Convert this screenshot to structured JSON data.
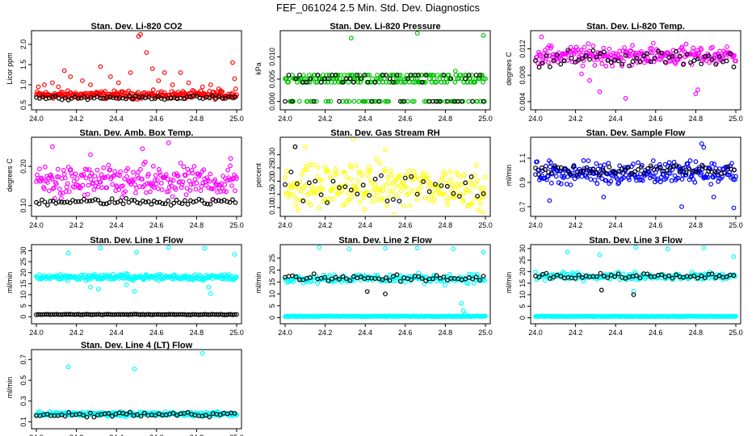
{
  "figure_title": "FEF_061024  2.5 Min. Std. Dev. Diagnostics",
  "chart_data": [
    {
      "type": "scatter",
      "title": "Stan. Dev. Li-820 CO2",
      "ylabel": "Licor ppm",
      "xlim": [
        24.0,
        25.0
      ],
      "ylim": [
        0.5,
        2.3
      ],
      "xticks": [
        "24.0",
        "24.2",
        "24.4",
        "24.6",
        "24.8",
        "25.0"
      ],
      "yticks": [
        {
          "v": 0.5,
          "label": "0.5"
        },
        {
          "v": 1.0,
          "label": "1.0"
        },
        {
          "v": 1.5,
          "label": "1.5"
        },
        {
          "v": 2.0,
          "label": "2.0"
        }
      ],
      "series": [
        {
          "name": "raw",
          "color": "#ff0000",
          "base": 0.75,
          "spread": 0.07,
          "extras": [
            [
              24.01,
              0.95
            ],
            [
              24.04,
              1.0
            ],
            [
              24.08,
              1.05
            ],
            [
              24.11,
              0.95
            ],
            [
              24.14,
              1.35
            ],
            [
              24.17,
              1.2
            ],
            [
              24.23,
              1.1
            ],
            [
              24.27,
              1.0
            ],
            [
              24.32,
              1.45
            ],
            [
              24.37,
              1.2
            ],
            [
              24.41,
              1.05
            ],
            [
              24.47,
              1.3
            ],
            [
              24.51,
              2.2
            ],
            [
              24.52,
              2.25
            ],
            [
              24.55,
              1.8
            ],
            [
              24.58,
              1.4
            ],
            [
              24.61,
              1.1
            ],
            [
              24.64,
              1.3
            ],
            [
              24.68,
              1.0
            ],
            [
              24.72,
              1.3
            ],
            [
              24.76,
              1.05
            ],
            [
              24.83,
              0.95
            ],
            [
              24.87,
              1.0
            ],
            [
              24.91,
              0.9
            ],
            [
              24.98,
              1.55
            ],
            [
              24.99,
              1.15
            ],
            [
              24.995,
              0.9
            ]
          ]
        },
        {
          "name": "averaged",
          "color": "#000000",
          "base": 0.68,
          "spread": 0.03,
          "step": 0.016,
          "extras": []
        }
      ]
    },
    {
      "type": "scatter",
      "title": "Stan. Dev. Li-820 Pressure",
      "ylabel": "kPa",
      "xlim": [
        24.0,
        25.0
      ],
      "ylim": [
        -0.0008,
        0.0155
      ],
      "xticks": [
        "24.0",
        "24.2",
        "24.4",
        "24.6",
        "24.8",
        "25.0"
      ],
      "yticks": [
        {
          "v": 0.0,
          "label": "0.000"
        },
        {
          "v": 0.005,
          "label": "0.005"
        },
        {
          "v": 0.01,
          "label": "0.010"
        }
      ],
      "series": [
        {
          "name": "raw",
          "color": "#00c000",
          "levels": [
            0.0,
            0.0043,
            0.0051,
            0.0059
          ],
          "extras": [
            [
              24.33,
              0.0142
            ],
            [
              24.66,
              0.0153
            ],
            [
              24.99,
              0.0148
            ],
            [
              24.85,
              0.0068
            ]
          ]
        },
        {
          "name": "averaged",
          "color": "#000000",
          "levels": [
            0.0,
            0.0043,
            0.0051,
            0.0059
          ],
          "step": 0.018,
          "extras": []
        }
      ]
    },
    {
      "type": "scatter",
      "title": "Stan. Dev. Li-820 Temp.",
      "ylabel": "degrees C",
      "xlim": [
        24.0,
        25.0
      ],
      "ylim": [
        0.0035,
        0.0145
      ],
      "xticks": [
        "24.0",
        "24.2",
        "24.4",
        "24.6",
        "24.8",
        "25.0"
      ],
      "yticks": [
        {
          "v": 0.004,
          "label": "0.004"
        },
        {
          "v": 0.008,
          "label": "0.008"
        },
        {
          "v": 0.012,
          "label": "0.012"
        }
      ],
      "series": [
        {
          "name": "raw",
          "color": "#ff00ff",
          "base": 0.011,
          "spread": 0.0011,
          "extras": [
            [
              24.03,
              0.0138
            ],
            [
              24.27,
              0.0072
            ],
            [
              24.32,
              0.0055
            ],
            [
              24.45,
              0.0045
            ],
            [
              24.8,
              0.0052
            ],
            [
              24.81,
              0.0058
            ],
            [
              24.23,
              0.0082
            ]
          ]
        },
        {
          "name": "averaged",
          "color": "#000000",
          "base": 0.0105,
          "spread": 0.0009,
          "step": 0.018,
          "extras": []
        }
      ]
    },
    {
      "type": "scatter",
      "title": "Stan. Dev. Amb. Box Temp.",
      "ylabel": "degrees C",
      "xlim": [
        24.0,
        25.0
      ],
      "ylim": [
        0.085,
        0.27
      ],
      "xticks": [
        "24.0",
        "24.2",
        "24.4",
        "24.6",
        "24.8",
        "25.0"
      ],
      "yticks": [
        {
          "v": 0.1,
          "label": "0.10"
        },
        {
          "v": 0.2,
          "label": "0.20"
        }
      ],
      "series": [
        {
          "name": "raw",
          "color": "#ff00ff",
          "base": 0.16,
          "spread": 0.03,
          "extras": [
            [
              24.66,
              0.26
            ],
            [
              24.08,
              0.25
            ],
            [
              24.53,
              0.245
            ],
            [
              24.27,
              0.23
            ],
            [
              24.97,
              0.22
            ]
          ]
        },
        {
          "name": "averaged",
          "color": "#000000",
          "base": 0.11,
          "spread": 0.006,
          "step": 0.014,
          "extras": []
        }
      ]
    },
    {
      "type": "scatter",
      "title": "Stan. Dev. Gas Stream RH",
      "ylabel": "percent",
      "xlim": [
        24.0,
        25.0
      ],
      "ylim": [
        0.085,
        0.36
      ],
      "xticks": [
        "24.0",
        "24.2",
        "24.4",
        "24.6",
        "24.8",
        "25.0"
      ],
      "yticks": [
        {
          "v": 0.1,
          "label": "0.10"
        },
        {
          "v": 0.15,
          "label": "0.15"
        },
        {
          "v": 0.2,
          "label": "0.20"
        },
        {
          "v": 0.25,
          "label": "0.25"
        },
        {
          "v": 0.3,
          "label": "0.30"
        }
      ],
      "series": [
        {
          "name": "raw",
          "color": "#ffff00",
          "base": 0.18,
          "spread": 0.06,
          "extras": [
            [
              24.34,
              0.36
            ],
            [
              24.1,
              0.33
            ],
            [
              24.5,
              0.32
            ]
          ]
        },
        {
          "name": "averaged",
          "color": "#000000",
          "base": 0.17,
          "spread": 0.04,
          "step": 0.03,
          "extras": [
            [
              24.05,
              0.33
            ]
          ]
        }
      ]
    },
    {
      "type": "scatter",
      "title": "Stan. Dev. Sample Flow",
      "ylabel": "ml/min",
      "xlim": [
        24.0,
        25.0
      ],
      "ylim": [
        0.66,
        1.26
      ],
      "xticks": [
        "24.0",
        "24.2",
        "24.4",
        "24.6",
        "24.8",
        "25.0"
      ],
      "yticks": [
        {
          "v": 0.7,
          "label": "0.7"
        },
        {
          "v": 0.9,
          "label": "0.9"
        },
        {
          "v": 1.1,
          "label": "1.1"
        }
      ],
      "series": [
        {
          "name": "raw",
          "color": "#0000ff",
          "base": 0.98,
          "spread": 0.07,
          "extras": [
            [
              24.83,
              1.22
            ],
            [
              24.84,
              1.19
            ],
            [
              24.07,
              0.75
            ],
            [
              24.73,
              0.7
            ],
            [
              24.99,
              0.69
            ],
            [
              24.34,
              0.78
            ],
            [
              24.89,
              0.78
            ]
          ]
        },
        {
          "name": "averaged",
          "color": "#000000",
          "base": 1.0,
          "spread": 0.03,
          "step": 0.016,
          "extras": []
        }
      ]
    },
    {
      "type": "scatter",
      "title": "Stan. Dev. Line 1 Flow",
      "ylabel": "ml/min",
      "xlim": [
        24.0,
        25.0
      ],
      "ylim": [
        -1,
        32
      ],
      "xticks": [
        "24.0",
        "24.2",
        "24.4",
        "24.6",
        "24.8",
        "25.0"
      ],
      "yticks": [
        {
          "v": 0,
          "label": "0"
        },
        {
          "v": 5,
          "label": "5"
        },
        {
          "v": 10,
          "label": "10"
        },
        {
          "v": 15,
          "label": "15"
        },
        {
          "v": 20,
          "label": "20"
        },
        {
          "v": 25,
          "label": "25"
        },
        {
          "v": 30,
          "label": "30"
        }
      ],
      "series": [
        {
          "name": "raw",
          "color": "#00ffff",
          "base": 18,
          "spread": 1.0,
          "extras": [
            [
              24.16,
              28.8
            ],
            [
              24.32,
              31.2
            ],
            [
              24.5,
              29.2
            ],
            [
              24.66,
              31.4
            ],
            [
              24.84,
              31.1
            ],
            [
              24.99,
              28.3
            ],
            [
              24.27,
              13.5
            ],
            [
              24.31,
              12.5
            ],
            [
              24.45,
              14.5
            ],
            [
              24.49,
              11.5
            ],
            [
              24.86,
              13.5
            ],
            [
              24.87,
              10.5
            ]
          ]
        },
        {
          "name": "averaged",
          "color": "#000000",
          "base": 1.0,
          "spread": 0.1,
          "step": 0.01,
          "extras": []
        }
      ]
    },
    {
      "type": "scatter",
      "title": "Stan. Dev. Line 2 Flow",
      "ylabel": "ml/min",
      "xlim": [
        24.0,
        25.0
      ],
      "ylim": [
        -0.5,
        30
      ],
      "xticks": [
        "24.0",
        "24.2",
        "24.4",
        "24.6",
        "24.8",
        "25.0"
      ],
      "yticks": [
        {
          "v": 0,
          "label": "0"
        },
        {
          "v": 5,
          "label": "5"
        },
        {
          "v": 10,
          "label": "10"
        },
        {
          "v": 15,
          "label": "15"
        },
        {
          "v": 20,
          "label": "20"
        },
        {
          "v": 25,
          "label": "25"
        }
      ],
      "series": [
        {
          "name": "raw",
          "color": "#00ffff",
          "base": 0.6,
          "spread": 0.1,
          "extras": [
            [
              24.17,
              29.5
            ],
            [
              24.32,
              28.8
            ],
            [
              24.5,
              29.2
            ],
            [
              24.66,
              29.3
            ],
            [
              24.84,
              28.9
            ],
            [
              24.99,
              27.5
            ],
            [
              24.88,
              6
            ],
            [
              24.89,
              3
            ],
            [
              24.9,
              1.5
            ]
          ]
        },
        {
          "name": "mid",
          "color": "#00ffff",
          "base": 16.5,
          "spread": 1.5,
          "step": 0.006,
          "extras": []
        },
        {
          "name": "averaged",
          "color": "#000000",
          "base": 16.5,
          "spread": 1.2,
          "step": 0.018,
          "extras": [
            [
              24.5,
              10
            ],
            [
              24.41,
              11
            ]
          ]
        }
      ]
    },
    {
      "type": "scatter",
      "title": "Stan. Dev. Line 3 Flow",
      "ylabel": "ml/min",
      "xlim": [
        24.0,
        25.0
      ],
      "ylim": [
        -0.5,
        31
      ],
      "xticks": [
        "24.0",
        "24.2",
        "24.4",
        "24.6",
        "24.8",
        "25.0"
      ],
      "yticks": [
        {
          "v": 0,
          "label": "0"
        },
        {
          "v": 5,
          "label": "5"
        },
        {
          "v": 10,
          "label": "10"
        },
        {
          "v": 15,
          "label": "15"
        },
        {
          "v": 20,
          "label": "20"
        },
        {
          "v": 25,
          "label": "25"
        },
        {
          "v": 30,
          "label": "30"
        }
      ],
      "series": [
        {
          "name": "raw",
          "color": "#00ffff",
          "base": 0.6,
          "spread": 0.1,
          "extras": [
            [
              24.16,
              28.5
            ],
            [
              24.32,
              27.3
            ],
            [
              24.5,
              30.5
            ],
            [
              24.66,
              29.8
            ],
            [
              24.84,
              30.3
            ],
            [
              24.99,
              26.5
            ],
            [
              24.49,
              11.5
            ]
          ]
        },
        {
          "name": "mid",
          "color": "#00ffff",
          "base": 18,
          "spread": 1.2,
          "step": 0.006,
          "extras": []
        },
        {
          "name": "averaged",
          "color": "#000000",
          "base": 18,
          "spread": 1.0,
          "step": 0.018,
          "extras": [
            [
              24.49,
              10
            ],
            [
              24.33,
              12
            ]
          ]
        }
      ]
    },
    {
      "type": "scatter",
      "title": "Stan. Dev. Line 4 (LT) Flow",
      "ylabel": "ml/min",
      "xlim": [
        24.0,
        25.0
      ],
      "ylim": [
        0.08,
        0.78
      ],
      "xticks": [
        "24.0",
        "24.2",
        "24.4",
        "24.6",
        "24.8",
        "25.0"
      ],
      "yticks": [
        {
          "v": 0.1,
          "label": "0.1"
        },
        {
          "v": 0.3,
          "label": "0.3"
        },
        {
          "v": 0.5,
          "label": "0.5"
        },
        {
          "v": 0.7,
          "label": "0.7"
        }
      ],
      "series": [
        {
          "name": "raw",
          "color": "#00ffff",
          "base": 0.175,
          "spread": 0.015,
          "extras": [
            [
              24.16,
              0.63
            ],
            [
              24.49,
              0.61
            ],
            [
              24.83,
              0.76
            ]
          ]
        },
        {
          "name": "averaged",
          "color": "#000000",
          "base": 0.17,
          "spread": 0.02,
          "step": 0.018,
          "extras": []
        }
      ]
    }
  ]
}
